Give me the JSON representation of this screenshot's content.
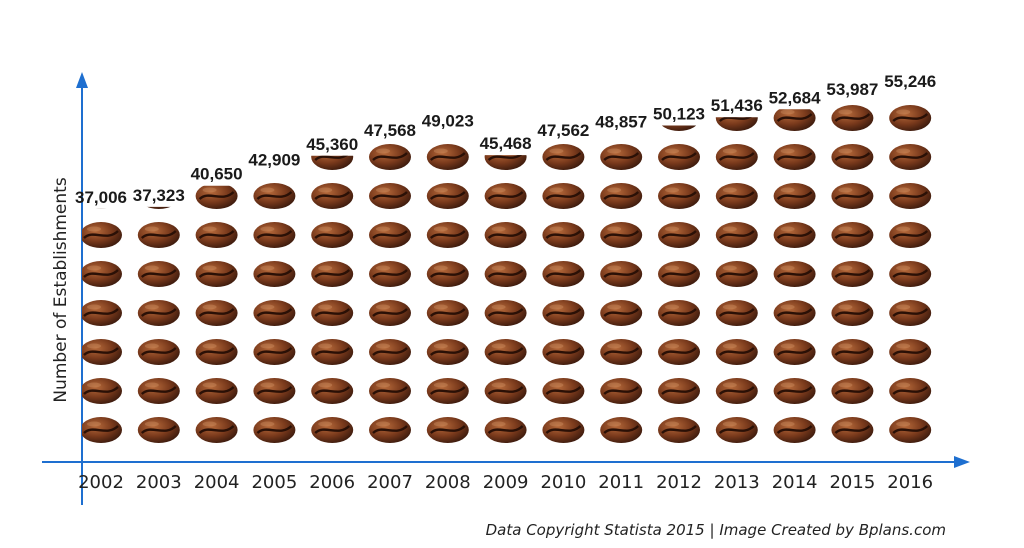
{
  "chart_data": {
    "type": "bar",
    "ylabel": "Number of Establishments",
    "xlabel": "",
    "categories": [
      "2002",
      "2003",
      "2004",
      "2005",
      "2006",
      "2007",
      "2008",
      "2009",
      "2010",
      "2011",
      "2012",
      "2013",
      "2014",
      "2015",
      "2016"
    ],
    "values": [
      37006,
      37323,
      40650,
      42909,
      45360,
      47568,
      49023,
      45468,
      47562,
      48857,
      50123,
      51436,
      52684,
      53987,
      55246
    ],
    "value_labels": [
      "37,006",
      "37,323",
      "40,650",
      "42,909",
      "45,360",
      "47,568",
      "49,023",
      "45,468",
      "47,562",
      "48,857",
      "50,123",
      "51,436",
      "52,684",
      "53,987",
      "55,246"
    ],
    "ylim": [
      0,
      55246
    ],
    "grid": false,
    "bar_style": "stacked coffee beans",
    "colors": {
      "axis": "#1e6fd0",
      "bean_dark": "#3b1a0d",
      "bean_mid": "#7a3a1c",
      "bean_light": "#b5693a"
    }
  },
  "footer": {
    "credit": "Data Copyright Statista 2015 | Image Created by Bplans.com"
  }
}
